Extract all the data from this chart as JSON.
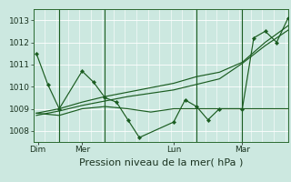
{
  "bg_color": "#cce8e0",
  "grid_color": "#b8d8d0",
  "line_color": "#1a5c20",
  "marker_color": "#1a5c20",
  "ylim": [
    1007.5,
    1013.5
  ],
  "yticks": [
    1008,
    1009,
    1010,
    1011,
    1012,
    1013
  ],
  "xlabel": "Pression niveau de la mer( hPa )",
  "xlabel_fontsize": 8,
  "tick_fontsize": 6.5,
  "day_labels": [
    "Dim",
    "Mer",
    "Lun",
    "Mar"
  ],
  "day_positions": [
    0.5,
    16,
    48,
    72
  ],
  "vline_x": [
    8,
    24,
    56,
    72
  ],
  "xlim": [
    -1,
    88
  ],
  "series1_x": [
    0,
    4,
    8,
    16,
    20,
    24,
    28,
    32,
    36,
    48,
    52,
    56,
    60,
    64,
    72,
    76,
    80,
    84,
    88
  ],
  "series1_y": [
    1011.5,
    1010.1,
    1009.0,
    1010.7,
    1010.2,
    1009.5,
    1009.3,
    1008.5,
    1007.7,
    1008.4,
    1009.4,
    1009.1,
    1008.5,
    1009.0,
    1009.0,
    1012.2,
    1012.5,
    1012.0,
    1013.1
  ],
  "series2_x": [
    0,
    8,
    16,
    24,
    32,
    40,
    48,
    56,
    64,
    72,
    80,
    88
  ],
  "series2_y": [
    1008.8,
    1008.7,
    1009.0,
    1009.1,
    1009.0,
    1008.85,
    1009.0,
    1009.0,
    1009.0,
    1009.0,
    1009.0,
    1009.0
  ],
  "series3_x": [
    0,
    8,
    16,
    24,
    32,
    40,
    48,
    56,
    64,
    72,
    80,
    88
  ],
  "series3_y": [
    1008.8,
    1009.0,
    1009.3,
    1009.55,
    1009.75,
    1009.95,
    1010.15,
    1010.45,
    1010.65,
    1011.1,
    1012.0,
    1012.75
  ],
  "series4_x": [
    0,
    8,
    16,
    24,
    32,
    40,
    48,
    56,
    64,
    72,
    80,
    88
  ],
  "series4_y": [
    1008.7,
    1008.9,
    1009.15,
    1009.35,
    1009.55,
    1009.7,
    1009.85,
    1010.1,
    1010.35,
    1011.05,
    1011.85,
    1012.55
  ]
}
